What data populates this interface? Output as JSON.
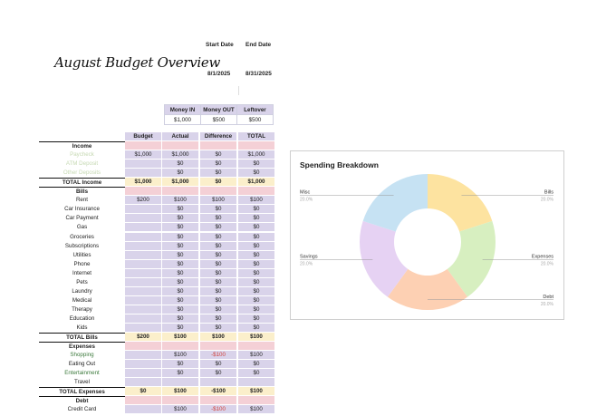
{
  "header": {
    "title": "August Budget Overview",
    "start_label": "Start Date",
    "end_label": "End Date",
    "start_value": "8/1/2025",
    "end_value": "8/31/2025"
  },
  "summary": {
    "columns": [
      "Money IN",
      "Money OUT",
      "Leftover"
    ],
    "values": [
      "$1,000",
      "$500",
      "$500"
    ]
  },
  "table": {
    "columns": [
      "Budget",
      "Actual",
      "Difference",
      "TOTAL"
    ],
    "rows": [
      {
        "kind": "section",
        "label": "Income"
      },
      {
        "kind": "data",
        "label": "Paycheck",
        "style": "muted",
        "values": [
          "$1,000",
          "$1,000",
          "$0",
          "$1,000"
        ]
      },
      {
        "kind": "data",
        "label": "ATM Deposit",
        "style": "muted",
        "values": [
          "",
          "$0",
          "$0",
          "$0"
        ]
      },
      {
        "kind": "data",
        "label": "Other Deposits",
        "style": "muted",
        "values": [
          "",
          "$0",
          "$0",
          "$0"
        ]
      },
      {
        "kind": "total",
        "label": "TOTAL Income",
        "values": [
          "$1,000",
          "$1,000",
          "$0",
          "$1,000"
        ]
      },
      {
        "kind": "section",
        "label": "Bills"
      },
      {
        "kind": "data",
        "label": "Rent",
        "values": [
          "$200",
          "$100",
          "$100",
          "$100"
        ]
      },
      {
        "kind": "data",
        "label": "Car Insurance",
        "values": [
          "",
          "$0",
          "$0",
          "$0"
        ]
      },
      {
        "kind": "data",
        "label": "Car Payment",
        "values": [
          "",
          "$0",
          "$0",
          "$0"
        ]
      },
      {
        "kind": "data",
        "label": "Gas",
        "values": [
          "",
          "$0",
          "$0",
          "$0"
        ]
      },
      {
        "kind": "data",
        "label": "Groceries",
        "values": [
          "",
          "$0",
          "$0",
          "$0"
        ]
      },
      {
        "kind": "data",
        "label": "Subscriptions",
        "values": [
          "",
          "$0",
          "$0",
          "$0"
        ]
      },
      {
        "kind": "data",
        "label": "Utilities",
        "values": [
          "",
          "$0",
          "$0",
          "$0"
        ]
      },
      {
        "kind": "data",
        "label": "Phone",
        "values": [
          "",
          "$0",
          "$0",
          "$0"
        ]
      },
      {
        "kind": "data",
        "label": "Internet",
        "values": [
          "",
          "$0",
          "$0",
          "$0"
        ]
      },
      {
        "kind": "data",
        "label": "Pets",
        "values": [
          "",
          "$0",
          "$0",
          "$0"
        ]
      },
      {
        "kind": "data",
        "label": "Laundry",
        "values": [
          "",
          "$0",
          "$0",
          "$0"
        ]
      },
      {
        "kind": "data",
        "label": "Medical",
        "values": [
          "",
          "$0",
          "$0",
          "$0"
        ]
      },
      {
        "kind": "data",
        "label": "Therapy",
        "values": [
          "",
          "$0",
          "$0",
          "$0"
        ]
      },
      {
        "kind": "data",
        "label": "Education",
        "values": [
          "",
          "$0",
          "$0",
          "$0"
        ]
      },
      {
        "kind": "data",
        "label": "Kids",
        "values": [
          "",
          "$0",
          "$0",
          "$0"
        ]
      },
      {
        "kind": "total",
        "label": "TOTAL Bills",
        "values": [
          "$200",
          "$100",
          "$100",
          "$100"
        ]
      },
      {
        "kind": "section",
        "label": "Expenses"
      },
      {
        "kind": "data",
        "label": "Shopping",
        "style": "green",
        "values": [
          "",
          "$100",
          "-$100",
          "$100"
        ],
        "neg": 2
      },
      {
        "kind": "data",
        "label": "Eating Out",
        "values": [
          "",
          "$0",
          "$0",
          "$0"
        ]
      },
      {
        "kind": "data",
        "label": "Entertainment",
        "style": "green",
        "values": [
          "",
          "$0",
          "$0",
          "$0"
        ]
      },
      {
        "kind": "data",
        "label": "Travel",
        "values": [
          "",
          "",
          "",
          ""
        ]
      },
      {
        "kind": "total",
        "label": "TOTAL Expenses",
        "values": [
          "$0",
          "$100",
          "-$100",
          "$100"
        ]
      },
      {
        "kind": "section",
        "label": "Debt"
      },
      {
        "kind": "data",
        "label": "Credit Card",
        "values": [
          "",
          "$100",
          "-$100",
          "$100"
        ],
        "neg": 2
      }
    ]
  },
  "chart_data": {
    "type": "pie",
    "title": "Spending Breakdown",
    "labels": [
      "Bills",
      "Expenses",
      "Debt",
      "Savings",
      "Misc"
    ],
    "values": [
      20,
      20,
      20,
      20,
      20
    ],
    "percent_labels": [
      "20.0%",
      "20.0%",
      "20.0%",
      "20.0%",
      "20.0%"
    ],
    "colors": [
      "#fde3a0",
      "#d7efc0",
      "#fdd0b3",
      "#e6d2f3",
      "#c6e2f3"
    ],
    "donut": true
  }
}
